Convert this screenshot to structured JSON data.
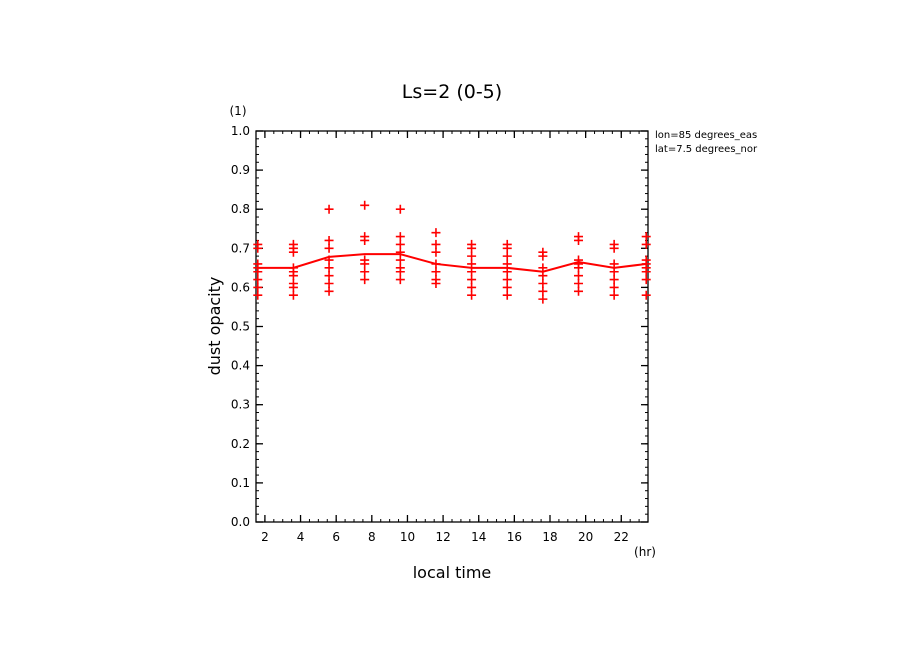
{
  "chart_data": {
    "type": "scatter",
    "title": "Ls=2 (0-5)",
    "xlabel": "local time",
    "ylabel": "dust opacity",
    "x_unit": "(hr)",
    "y_unit": "(1)",
    "xlim": [
      1.5,
      23.5
    ],
    "ylim": [
      0.0,
      1.0
    ],
    "x_ticks": [
      2,
      4,
      6,
      8,
      10,
      12,
      14,
      16,
      18,
      20,
      22
    ],
    "x_tick_labels": [
      "2",
      "4",
      "6",
      "8",
      "10",
      "12",
      "14",
      "16",
      "18",
      "20",
      "22"
    ],
    "y_ticks": [
      0.0,
      0.1,
      0.2,
      0.3,
      0.4,
      0.5,
      0.6,
      0.7,
      0.8,
      0.9,
      1.0
    ],
    "y_tick_labels": [
      "0.0",
      "0.1",
      "0.2",
      "0.3",
      "0.4",
      "0.5",
      "0.6",
      "0.7",
      "0.8",
      "0.9",
      "1.0"
    ],
    "annotations": [
      "lon=85 degrees_eas",
      "lat=7.5 degrees_nor"
    ],
    "color": "#ff0000",
    "series": [
      {
        "kind": "markers",
        "marker": "+",
        "points": [
          [
            1.6,
            0.71
          ],
          [
            1.6,
            0.7
          ],
          [
            1.6,
            0.66
          ],
          [
            1.6,
            0.65
          ],
          [
            1.6,
            0.64
          ],
          [
            1.6,
            0.62
          ],
          [
            1.6,
            0.6
          ],
          [
            1.6,
            0.58
          ],
          [
            3.6,
            0.71
          ],
          [
            3.6,
            0.7
          ],
          [
            3.6,
            0.69
          ],
          [
            3.6,
            0.65
          ],
          [
            3.6,
            0.64
          ],
          [
            3.6,
            0.63
          ],
          [
            3.6,
            0.61
          ],
          [
            3.6,
            0.6
          ],
          [
            3.6,
            0.58
          ],
          [
            5.6,
            0.8
          ],
          [
            5.6,
            0.72
          ],
          [
            5.6,
            0.7
          ],
          [
            5.6,
            0.67
          ],
          [
            5.6,
            0.65
          ],
          [
            5.6,
            0.63
          ],
          [
            5.6,
            0.61
          ],
          [
            5.6,
            0.59
          ],
          [
            7.6,
            0.81
          ],
          [
            7.6,
            0.73
          ],
          [
            7.6,
            0.72
          ],
          [
            7.6,
            0.67
          ],
          [
            7.6,
            0.66
          ],
          [
            7.6,
            0.64
          ],
          [
            7.6,
            0.62
          ],
          [
            9.6,
            0.8
          ],
          [
            9.6,
            0.73
          ],
          [
            9.6,
            0.71
          ],
          [
            9.6,
            0.69
          ],
          [
            9.6,
            0.67
          ],
          [
            9.6,
            0.65
          ],
          [
            9.6,
            0.64
          ],
          [
            9.6,
            0.62
          ],
          [
            11.6,
            0.74
          ],
          [
            11.6,
            0.71
          ],
          [
            11.6,
            0.69
          ],
          [
            11.6,
            0.66
          ],
          [
            11.6,
            0.64
          ],
          [
            11.6,
            0.62
          ],
          [
            11.6,
            0.61
          ],
          [
            13.6,
            0.71
          ],
          [
            13.6,
            0.7
          ],
          [
            13.6,
            0.68
          ],
          [
            13.6,
            0.66
          ],
          [
            13.6,
            0.64
          ],
          [
            13.6,
            0.62
          ],
          [
            13.6,
            0.6
          ],
          [
            13.6,
            0.58
          ],
          [
            15.6,
            0.71
          ],
          [
            15.6,
            0.7
          ],
          [
            15.6,
            0.68
          ],
          [
            15.6,
            0.66
          ],
          [
            15.6,
            0.64
          ],
          [
            15.6,
            0.62
          ],
          [
            15.6,
            0.6
          ],
          [
            15.6,
            0.58
          ],
          [
            17.6,
            0.69
          ],
          [
            17.6,
            0.68
          ],
          [
            17.6,
            0.65
          ],
          [
            17.6,
            0.63
          ],
          [
            17.6,
            0.61
          ],
          [
            17.6,
            0.59
          ],
          [
            17.6,
            0.57
          ],
          [
            19.6,
            0.73
          ],
          [
            19.6,
            0.72
          ],
          [
            19.6,
            0.67
          ],
          [
            19.6,
            0.66
          ],
          [
            19.6,
            0.65
          ],
          [
            19.6,
            0.63
          ],
          [
            19.6,
            0.61
          ],
          [
            19.6,
            0.59
          ],
          [
            21.6,
            0.71
          ],
          [
            21.6,
            0.7
          ],
          [
            21.6,
            0.66
          ],
          [
            21.6,
            0.64
          ],
          [
            21.6,
            0.62
          ],
          [
            21.6,
            0.6
          ],
          [
            21.6,
            0.58
          ],
          [
            23.4,
            0.73
          ],
          [
            23.4,
            0.71
          ],
          [
            23.4,
            0.67
          ],
          [
            23.4,
            0.66
          ],
          [
            23.4,
            0.65
          ],
          [
            23.4,
            0.64
          ],
          [
            23.4,
            0.62
          ],
          [
            23.4,
            0.58
          ]
        ]
      },
      {
        "kind": "line",
        "x": [
          1.6,
          3.6,
          5.6,
          7.6,
          9.6,
          11.6,
          13.6,
          15.6,
          17.6,
          19.6,
          21.6,
          23.4
        ],
        "y": [
          0.65,
          0.65,
          0.678,
          0.685,
          0.685,
          0.66,
          0.65,
          0.65,
          0.64,
          0.665,
          0.65,
          0.66
        ]
      }
    ]
  }
}
